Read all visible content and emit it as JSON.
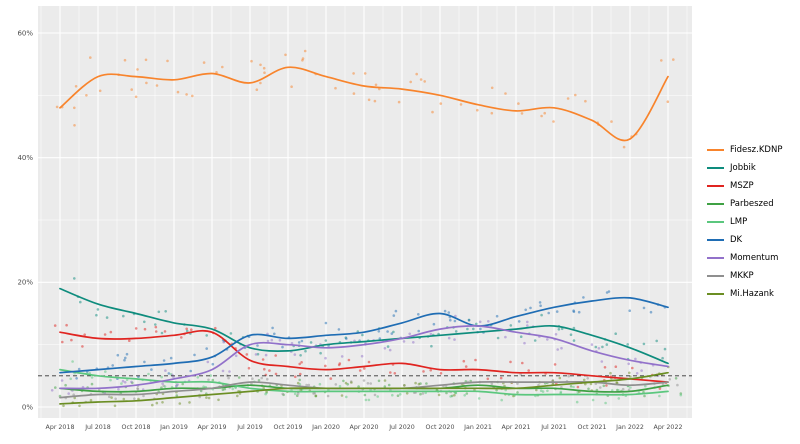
{
  "chart_data": {
    "type": "scatter",
    "title": "",
    "x_tick_labels": [
      "Apr 2018",
      "Jul 2018",
      "Oct 2018",
      "Jan 2019",
      "Apr 2019",
      "Jul 2019",
      "Oct 2019",
      "Jan 2020",
      "Apr 2020",
      "Jul 2020",
      "Oct 2020",
      "Jan 2021",
      "Apr 2021",
      "Jul 2021",
      "Oct 2021",
      "Jan 2022",
      "Apr 2022"
    ],
    "y_tick_values": [
      0,
      20,
      40,
      60
    ],
    "y_tick_labels": [
      "0%",
      "20%",
      "40%",
      "60%"
    ],
    "y_minor_values": [
      10,
      30,
      50
    ],
    "ylim": [
      -2,
      64
    ],
    "threshold_pct": 5,
    "panel_bg": "#ebebeb",
    "grid_color": "#ffffff",
    "tick_text_color": "#4d4d4d",
    "threshold_color": "#333333",
    "legend_position": "right",
    "series": [
      {
        "name": "Fidesz.KDNP",
        "color": "#f8842c",
        "scatter_spread": 3.2,
        "values": [
          48,
          53,
          53,
          52.5,
          53.5,
          52,
          54.5,
          53,
          51.5,
          51,
          50,
          48.5,
          47.5,
          48,
          46,
          43,
          53
        ]
      },
      {
        "name": "Jobbik",
        "color": "#0e8c7d",
        "scatter_spread": 2.0,
        "values": [
          19,
          16.5,
          15,
          13.5,
          12.5,
          9.5,
          9,
          10,
          10.5,
          11,
          11.5,
          12,
          12.5,
          13,
          11.5,
          9.5,
          7
        ]
      },
      {
        "name": "MSZP",
        "color": "#e02420",
        "scatter_spread": 1.8,
        "values": [
          12,
          11,
          11,
          11.5,
          12,
          7.5,
          6.5,
          6,
          6.5,
          7,
          6,
          6,
          5.5,
          5.5,
          5,
          4.5,
          4
        ]
      },
      {
        "name": "Parbeszed",
        "color": "#3fa144",
        "scatter_spread": 1.4,
        "values": [
          3,
          2.5,
          2.5,
          3,
          3,
          3.5,
          3,
          3,
          3,
          3,
          3,
          3.5,
          3,
          3,
          2.5,
          2.5,
          3.5
        ]
      },
      {
        "name": "LMP",
        "color": "#5bc77e",
        "scatter_spread": 1.4,
        "values": [
          6,
          5,
          4.5,
          4,
          4,
          3,
          2.5,
          2.5,
          2.5,
          2.5,
          2.5,
          2.5,
          2,
          2,
          2,
          2,
          2.5
        ]
      },
      {
        "name": "DK",
        "color": "#1f6db4",
        "scatter_spread": 2.0,
        "values": [
          5.5,
          6,
          6.5,
          7,
          8,
          11.5,
          11,
          11.5,
          12,
          13.5,
          15,
          13,
          14.5,
          16,
          17,
          17.5,
          16
        ]
      },
      {
        "name": "Momentum",
        "color": "#9271ca",
        "scatter_spread": 1.8,
        "values": [
          3,
          3,
          3.5,
          4.5,
          6,
          10,
          10,
          9.5,
          10,
          11,
          12.5,
          13,
          12,
          11,
          9,
          7.5,
          6.5
        ]
      },
      {
        "name": "MKKP",
        "color": "#8f8f8f",
        "scatter_spread": 1.4,
        "values": [
          1.5,
          2,
          2,
          2.5,
          3,
          4,
          3.5,
          3,
          3,
          3,
          3.5,
          4,
          4,
          4,
          4,
          3.5,
          4
        ]
      },
      {
        "name": "Mi.Hazank",
        "color": "#6b8e23",
        "scatter_spread": 1.3,
        "values": [
          0.5,
          0.8,
          1,
          1.5,
          2,
          2.5,
          3,
          3,
          3,
          3,
          3,
          3,
          3,
          3.5,
          4,
          4.5,
          5.5
        ]
      }
    ]
  }
}
